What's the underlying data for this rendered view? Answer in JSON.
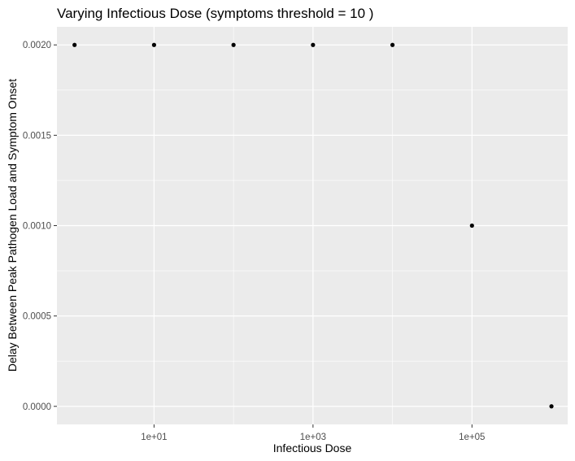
{
  "chart_data": {
    "type": "scatter",
    "title": "Varying Infectious Dose  (symptoms threshold =  10 )",
    "xlabel": "Infectious Dose",
    "ylabel": "Delay Between Peak Pathogen Load and Symptom Onset",
    "x_scale": "log10",
    "x_ticks": [
      {
        "value": 10,
        "label": "1e+01"
      },
      {
        "value": 1000,
        "label": "1e+03"
      },
      {
        "value": 100000,
        "label": "1e+05"
      }
    ],
    "y_ticks": [
      {
        "value": 0.0,
        "label": "0.0000"
      },
      {
        "value": 0.0005,
        "label": "0.0005"
      },
      {
        "value": 0.001,
        "label": "0.0010"
      },
      {
        "value": 0.0015,
        "label": "0.0015"
      },
      {
        "value": 0.002,
        "label": "0.0020"
      }
    ],
    "xlim": [
      0.6,
      1600000
    ],
    "ylim": [
      -0.0001,
      0.0021
    ],
    "grid": true,
    "points": [
      {
        "x": 1,
        "y": 0.002
      },
      {
        "x": 10,
        "y": 0.002
      },
      {
        "x": 100,
        "y": 0.002
      },
      {
        "x": 1000,
        "y": 0.002
      },
      {
        "x": 10000,
        "y": 0.002
      },
      {
        "x": 100000,
        "y": 0.001
      },
      {
        "x": 1000000,
        "y": 0.0
      }
    ],
    "colors": {
      "panel": "#ebebeb",
      "grid": "#ffffff",
      "point": "#000000",
      "tick_text": "#4d4d4d",
      "tick_mark": "#333333"
    }
  }
}
